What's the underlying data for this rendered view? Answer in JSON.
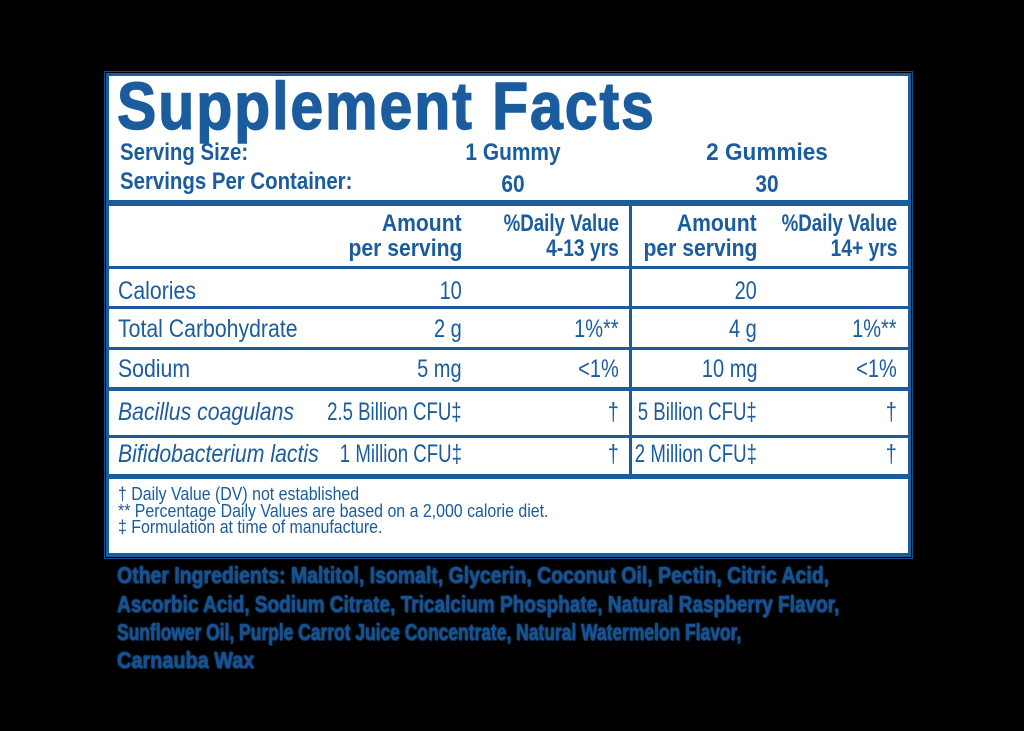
{
  "colors": {
    "accent": "#1b5c9e",
    "background": "#000000",
    "paper": "#ffffff"
  },
  "label": {
    "title": "Supplement Facts",
    "serving": {
      "size_label": "Serving Size:",
      "per_container_label": "Servings Per Container:",
      "columns": [
        {
          "size": "1 Gummy",
          "count": "60"
        },
        {
          "size": "2 Gummies",
          "count": "30"
        }
      ]
    },
    "header": {
      "groups": [
        {
          "amount": "Amount",
          "per_serving": "per serving",
          "dv": "%Daily Value",
          "age": "4-13 yrs"
        },
        {
          "amount": "Amount",
          "per_serving": "per serving",
          "dv": "%Daily Value",
          "age": "14+ yrs"
        }
      ]
    },
    "rows": [
      {
        "name": "Calories",
        "l_amount": "10",
        "l_dv": "",
        "r_amount": "20",
        "r_dv": ""
      },
      {
        "name": "Total Carbohydrate",
        "l_amount": "2 g",
        "l_dv": "1%**",
        "r_amount": "4 g",
        "r_dv": "1%**"
      },
      {
        "name": "Sodium",
        "l_amount": "5 mg",
        "l_dv": "<1%",
        "r_amount": "10 mg",
        "r_dv": "<1%"
      },
      {
        "name": "Bacillus coagulans",
        "l_amount": "2.5 Billion CFU‡",
        "l_dv": "†",
        "r_amount": "5 Billion CFU‡",
        "r_dv": "†"
      },
      {
        "name": "Bifidobacterium lactis",
        "l_amount": "1 Million CFU‡",
        "l_dv": "†",
        "r_amount": "2 Million CFU‡",
        "r_dv": "†"
      }
    ],
    "footnotes": [
      "† Daily Value (DV) not established",
      "** Percentage Daily Values are based on a 2,000 calorie diet.",
      "‡ Formulation at time of manufacture."
    ],
    "other_ingredients": {
      "lines": [
        "Other Ingredients: Maltitol, Isomalt, Glycerin, Coconut Oil, Pectin, Citric Acid,",
        "Ascorbic Acid, Sodium Citrate, Tricalcium Phosphate, Natural Raspberry Flavor,",
        "Sunflower Oil, Purple Carrot Juice Concentrate, Natural Watermelon Flavor,",
        "Carnauba Wax"
      ]
    }
  }
}
